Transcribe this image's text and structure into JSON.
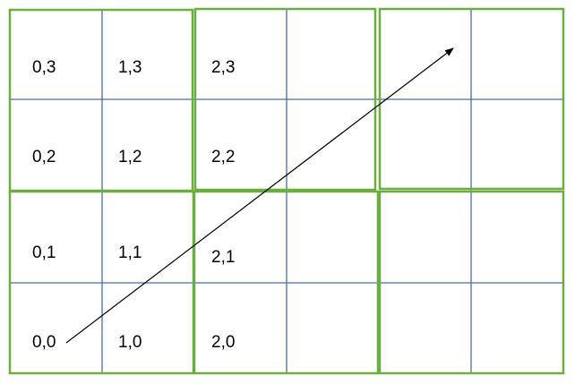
{
  "diagram": {
    "type": "grid-with-traversal-ray",
    "colors": {
      "background": "#ffffff",
      "cell_line": "#4a6aae",
      "block_border": "#6aaf3e",
      "text": "#000000",
      "arrow": "#000000"
    },
    "cells": [
      {
        "id": "0-3",
        "label": "0,3"
      },
      {
        "id": "1-3",
        "label": "1,3"
      },
      {
        "id": "2-3",
        "label": "2,3"
      },
      {
        "id": "0-2",
        "label": "0,2"
      },
      {
        "id": "1-2",
        "label": "1,2"
      },
      {
        "id": "2-2",
        "label": "2,2"
      },
      {
        "id": "0-1",
        "label": "0,1"
      },
      {
        "id": "1-1",
        "label": "1,1"
      },
      {
        "id": "2-1",
        "label": "2,1"
      },
      {
        "id": "0-0",
        "label": "0,0"
      },
      {
        "id": "1-0",
        "label": "1,0"
      },
      {
        "id": "2-0",
        "label": "2,0"
      }
    ],
    "arrow": {
      "description": "ray from cell 0,0 toward upper-right",
      "icon": "arrowhead"
    }
  }
}
